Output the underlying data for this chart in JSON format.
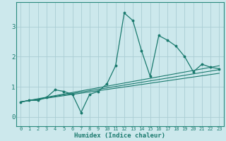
{
  "xlabel": "Humidex (Indice chaleur)",
  "bg_color": "#cce8ec",
  "grid_color": "#aacdd4",
  "line_color": "#1a7a6e",
  "spine_color": "#2a8a7e",
  "xlim": [
    -0.5,
    23.5
  ],
  "ylim": [
    -0.3,
    3.8
  ],
  "xtick_vals": [
    0,
    1,
    2,
    3,
    4,
    5,
    6,
    7,
    8,
    9,
    10,
    11,
    12,
    13,
    14,
    15,
    16,
    17,
    18,
    19,
    20,
    21,
    22,
    23
  ],
  "xtick_labels": [
    "0",
    "1",
    "2",
    "3",
    "4",
    "5",
    "6",
    "7",
    "8",
    "9",
    "10",
    "11",
    "12",
    "13",
    "14",
    "15",
    "16",
    "17",
    "18",
    "19",
    "20",
    "21",
    "22",
    "23"
  ],
  "ytick_vals": [
    0,
    1,
    2,
    3
  ],
  "main_x": [
    0,
    1,
    2,
    3,
    4,
    5,
    6,
    7,
    8,
    9,
    10,
    11,
    12,
    13,
    14,
    15,
    16,
    17,
    18,
    19,
    20,
    21,
    22,
    23
  ],
  "main_y": [
    0.5,
    0.55,
    0.55,
    0.65,
    0.9,
    0.85,
    0.75,
    0.15,
    0.75,
    0.85,
    1.1,
    1.7,
    3.45,
    3.2,
    2.2,
    1.35,
    2.7,
    2.55,
    2.35,
    2.0,
    1.5,
    1.75,
    1.65,
    1.6
  ],
  "trend_lines": [
    {
      "x": [
        0,
        23
      ],
      "y": [
        0.5,
        1.45
      ]
    },
    {
      "x": [
        0,
        23
      ],
      "y": [
        0.5,
        1.57
      ]
    },
    {
      "x": [
        0,
        23
      ],
      "y": [
        0.5,
        1.7
      ]
    }
  ]
}
